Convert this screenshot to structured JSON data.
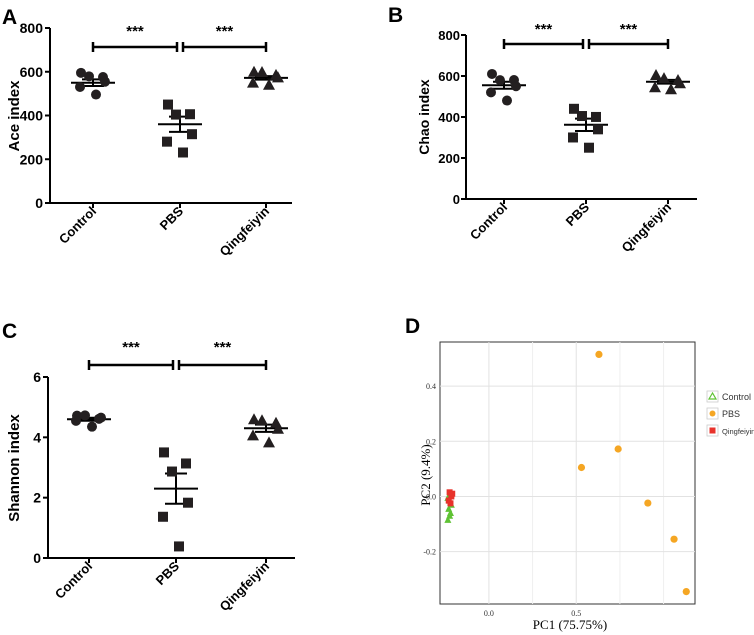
{
  "chart_data": [
    {
      "panel": "A",
      "type": "scatter",
      "ylabel": "Ace index",
      "ylim": [
        0,
        800
      ],
      "yticks": [
        "0",
        "200",
        "400",
        "600",
        "800"
      ],
      "categories": [
        "Control",
        "PBS",
        "Qingfeiyin"
      ],
      "series": [
        {
          "name": "Control",
          "marker": "circle",
          "values": [
            595,
            585,
            570,
            550,
            535,
            505
          ],
          "mean": 550,
          "sem": 15
        },
        {
          "name": "PBS",
          "marker": "square",
          "values": [
            450,
            415,
            395,
            310,
            285,
            240
          ],
          "mean": 360,
          "sem": 35
        },
        {
          "name": "Qingfeiyin",
          "marker": "triangle",
          "values": [
            600,
            595,
            590,
            570,
            555,
            550
          ],
          "mean": 572,
          "sem": 8
        }
      ],
      "significance": [
        {
          "from": "Control",
          "to": "PBS",
          "label": "***"
        },
        {
          "from": "PBS",
          "to": "Qingfeiyin",
          "label": "***"
        }
      ]
    },
    {
      "panel": "B",
      "type": "scatter",
      "ylabel": "Chao index",
      "ylim": [
        0,
        800
      ],
      "yticks": [
        "0",
        "200",
        "400",
        "600",
        "800"
      ],
      "categories": [
        "Control",
        "PBS",
        "Qingfeiyin"
      ],
      "series": [
        {
          "name": "Control",
          "marker": "circle",
          "values": [
            610,
            590,
            570,
            545,
            525,
            490
          ],
          "mean": 555,
          "sem": 17
        },
        {
          "name": "PBS",
          "marker": "square",
          "values": [
            440,
            410,
            395,
            335,
            305,
            260
          ],
          "mean": 362,
          "sem": 30
        },
        {
          "name": "Qingfeiyin",
          "marker": "triangle",
          "values": [
            605,
            590,
            580,
            560,
            550,
            545
          ],
          "mean": 572,
          "sem": 9
        }
      ],
      "significance": [
        {
          "from": "Control",
          "to": "PBS",
          "label": "***"
        },
        {
          "from": "PBS",
          "to": "Qingfeiyin",
          "label": "***"
        }
      ]
    },
    {
      "panel": "C",
      "type": "scatter",
      "ylabel": "Shannon index",
      "ylim": [
        0,
        6
      ],
      "yticks": [
        "0",
        "2",
        "4",
        "6"
      ],
      "categories": [
        "Control",
        "PBS",
        "Qingfeiyin"
      ],
      "series": [
        {
          "name": "Control",
          "marker": "circle",
          "values": [
            4.72,
            4.68,
            4.66,
            4.62,
            4.58,
            4.42
          ],
          "mean": 4.6,
          "sem": 0.05
        },
        {
          "name": "PBS",
          "marker": "square",
          "values": [
            3.5,
            3.2,
            2.8,
            1.8,
            1.4,
            0.45
          ],
          "mean": 2.3,
          "sem": 0.5
        },
        {
          "name": "Qingfeiyin",
          "marker": "triangle",
          "values": [
            4.6,
            4.55,
            4.5,
            4.25,
            4.1,
            3.9
          ],
          "mean": 4.3,
          "sem": 0.12
        }
      ],
      "significance": [
        {
          "from": "Control",
          "to": "PBS",
          "label": "***"
        },
        {
          "from": "PBS",
          "to": "Qingfeiyin",
          "label": "***"
        }
      ]
    },
    {
      "panel": "D",
      "type": "scatter",
      "xlabel": "PC1 (75.75%)",
      "ylabel": "PC2 (9.4%)",
      "xticks": [
        0.0,
        0.5
      ],
      "xtick_labels": [
        "0.0",
        "0.5"
      ],
      "yticks": [
        -0.2,
        0.0,
        0.2,
        0.4
      ],
      "ytick_labels": [
        "-0.2",
        "0.0",
        "0.2",
        "0.4"
      ],
      "xlim": [
        -0.28,
        1.18
      ],
      "ylim": [
        -0.39,
        0.56
      ],
      "legend": "right",
      "series": [
        {
          "name": "Control",
          "marker": "triangle",
          "color": "#5fc234",
          "x": [
            -0.235,
            -0.225,
            -0.22,
            -0.23,
            -0.215,
            -0.225,
            -0.235,
            -0.22
          ],
          "y": [
            -0.085,
            -0.07,
            -0.06,
            -0.045,
            -0.03,
            -0.015,
            -0.005,
            0.005
          ]
        },
        {
          "name": "PBS",
          "marker": "circle",
          "color": "#f5a623",
          "x": [
            0.63,
            0.53,
            0.74,
            0.91,
            1.06,
            1.13
          ],
          "y": [
            0.515,
            0.105,
            0.172,
            -0.024,
            -0.155,
            -0.345
          ]
        },
        {
          "name": "Qingfeiyin",
          "marker": "square",
          "color": "#e8322b",
          "x": [
            -0.225,
            -0.215,
            -0.23,
            -0.22,
            -0.21
          ],
          "y": [
            0.015,
            0.0,
            -0.015,
            -0.025,
            0.01
          ]
        }
      ]
    }
  ]
}
